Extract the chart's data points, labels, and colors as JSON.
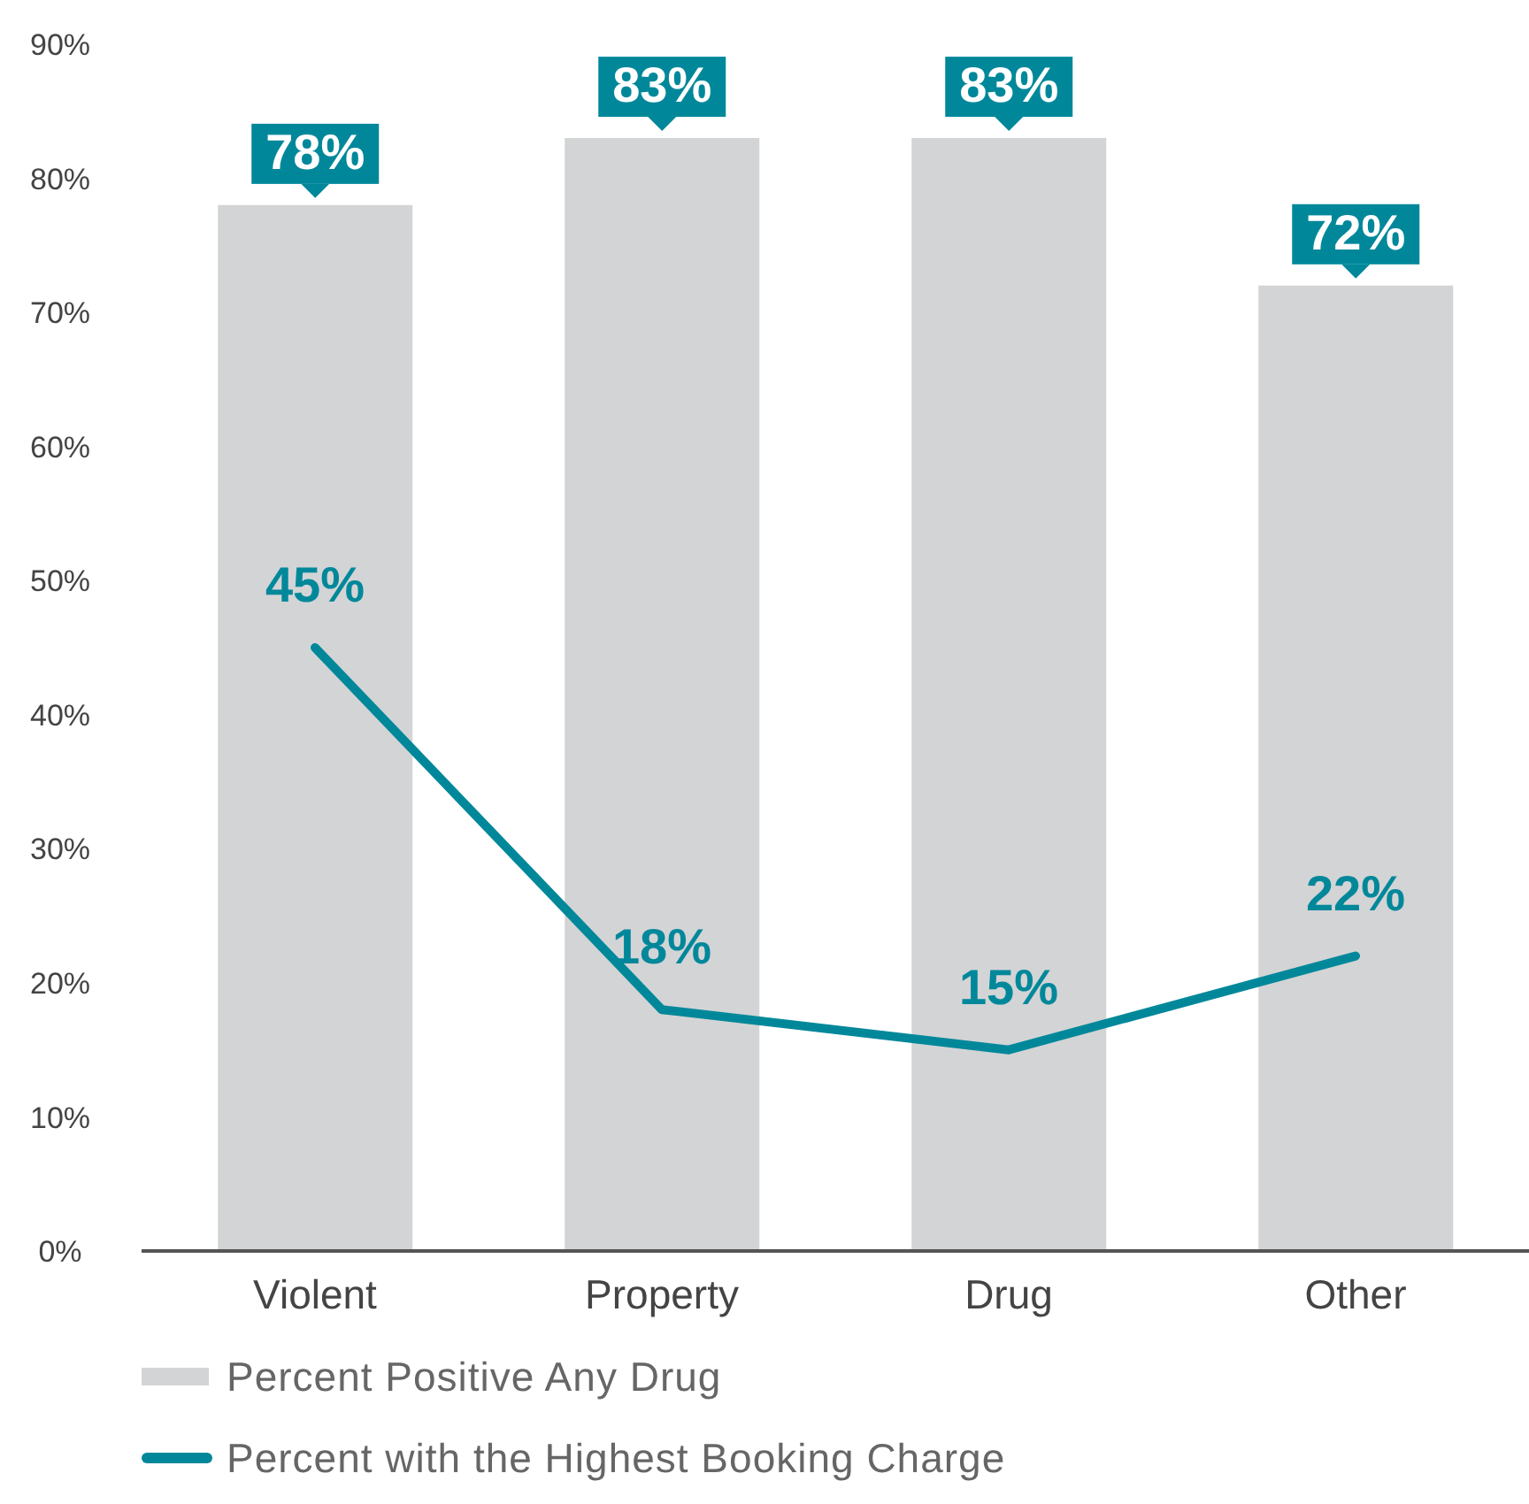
{
  "chart_data": {
    "type": "bar",
    "categories": [
      "Violent",
      "Property",
      "Drug",
      "Other"
    ],
    "series": [
      {
        "name": "Percent Positive Any Drug",
        "color": "#d3d4d6",
        "values": [
          78,
          83,
          83,
          72
        ],
        "value_labels": [
          "78%",
          "83%",
          "83%",
          "72%"
        ]
      },
      {
        "name": "Percent with the Highest Booking Charge",
        "type": "line",
        "color": "#00889a",
        "values": [
          45,
          18,
          15,
          22
        ],
        "value_labels": [
          "45%",
          "18%",
          "15%",
          "22%"
        ]
      }
    ],
    "ylim": [
      0,
      90
    ],
    "yticks": [
      {
        "value": 0,
        "label": "0%"
      },
      {
        "value": 10,
        "label": "10%"
      },
      {
        "value": 20,
        "label": "20%"
      },
      {
        "value": 30,
        "label": "30%"
      },
      {
        "value": 40,
        "label": "40%"
      },
      {
        "value": 50,
        "label": "50%"
      },
      {
        "value": 60,
        "label": "60%"
      },
      {
        "value": 70,
        "label": "70%"
      },
      {
        "value": 80,
        "label": "80%"
      },
      {
        "value": 90,
        "label": "90%"
      }
    ],
    "grid": false,
    "legend": "bottom",
    "marker": "none",
    "line_style": "solid"
  }
}
